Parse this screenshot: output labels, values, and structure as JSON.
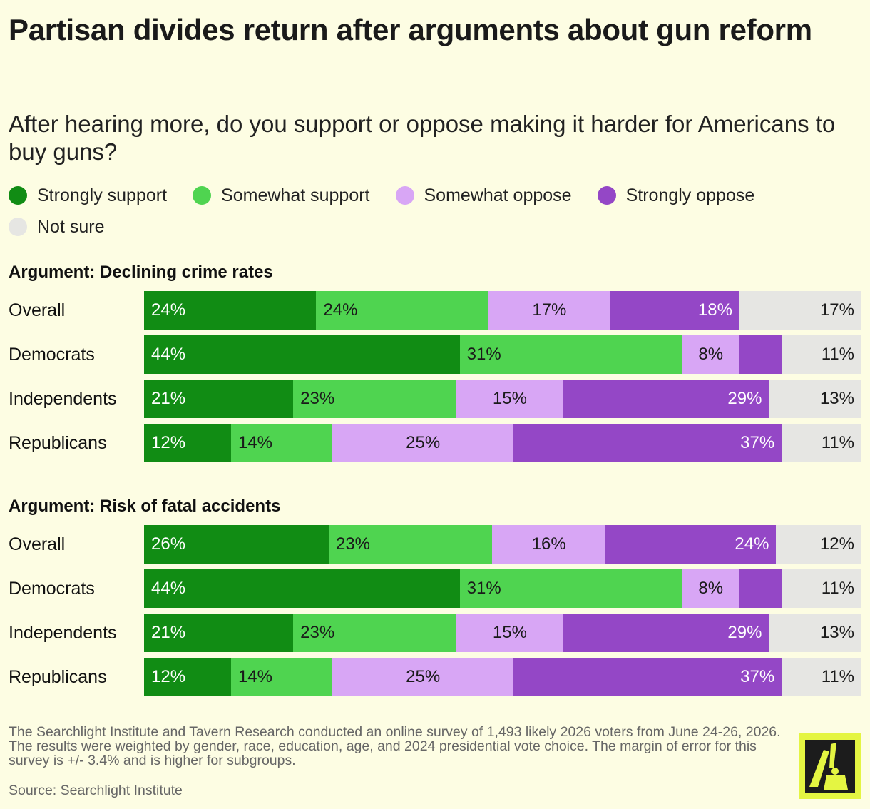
{
  "title": "Partisan divides return after arguments about gun reform",
  "subtitle": "After hearing more, do you support or oppose making it harder for Americans to buy guns?",
  "colors": {
    "strongly_support": "#118c14",
    "somewhat_support": "#4fd450",
    "somewhat_oppose": "#d8a6f5",
    "strongly_oppose": "#9447c6",
    "not_sure": "#e6e6e3"
  },
  "legend": [
    {
      "label": "Strongly support",
      "color": "#118c14"
    },
    {
      "label": "Somewhat support",
      "color": "#4fd450"
    },
    {
      "label": "Somewhat oppose",
      "color": "#d8a6f5"
    },
    {
      "label": "Strongly oppose",
      "color": "#9447c6"
    },
    {
      "label": "Not sure",
      "color": "#e6e6e3"
    }
  ],
  "chart_data": [
    {
      "type": "bar",
      "orientation": "horizontal",
      "stacked": true,
      "title": "Argument: Declining crime rates",
      "categories": [
        "Overall",
        "Democrats",
        "Independents",
        "Republicans"
      ],
      "series": [
        {
          "name": "Strongly support",
          "values": [
            24,
            44,
            21,
            12
          ]
        },
        {
          "name": "Somewhat support",
          "values": [
            24,
            31,
            23,
            14
          ]
        },
        {
          "name": "Somewhat oppose",
          "values": [
            17,
            8,
            15,
            25
          ]
        },
        {
          "name": "Strongly oppose",
          "values": [
            18,
            6,
            29,
            37
          ]
        },
        {
          "name": "Not sure",
          "values": [
            17,
            11,
            13,
            11
          ]
        }
      ],
      "labels": [
        [
          "24%",
          "24%",
          "17%",
          "18%",
          "17%"
        ],
        [
          "44%",
          "31%",
          "8%",
          "",
          "11%"
        ],
        [
          "21%",
          "23%",
          "15%",
          "29%",
          "13%"
        ],
        [
          "12%",
          "14%",
          "25%",
          "37%",
          "11%"
        ]
      ]
    },
    {
      "type": "bar",
      "orientation": "horizontal",
      "stacked": true,
      "title": "Argument: Risk of fatal accidents",
      "categories": [
        "Overall",
        "Democrats",
        "Independents",
        "Republicans"
      ],
      "series": [
        {
          "name": "Strongly support",
          "values": [
            26,
            44,
            21,
            12
          ]
        },
        {
          "name": "Somewhat support",
          "values": [
            23,
            31,
            23,
            14
          ]
        },
        {
          "name": "Somewhat oppose",
          "values": [
            16,
            8,
            15,
            25
          ]
        },
        {
          "name": "Strongly oppose",
          "values": [
            24,
            6,
            29,
            37
          ]
        },
        {
          "name": "Not sure",
          "values": [
            12,
            11,
            13,
            11
          ]
        }
      ],
      "labels": [
        [
          "26%",
          "23%",
          "16%",
          "24%",
          "12%"
        ],
        [
          "44%",
          "31%",
          "8%",
          "",
          "11%"
        ],
        [
          "21%",
          "23%",
          "15%",
          "29%",
          "13%"
        ],
        [
          "12%",
          "14%",
          "25%",
          "37%",
          "11%"
        ]
      ]
    }
  ],
  "footnote": "The Searchlight Institute and Tavern Research conducted an online survey of 1,493 likely 2026 voters from June 24-26, 2026. The results were weighted by gender, race, education, age, and 2024 presidential vote choice. The margin of error for this survey is +/- 3.4% and is higher for subgroups.",
  "source": "Source: Searchlight Institute",
  "logo": {
    "icon": "searchlight-logo-icon",
    "background": "#e4f542"
  }
}
